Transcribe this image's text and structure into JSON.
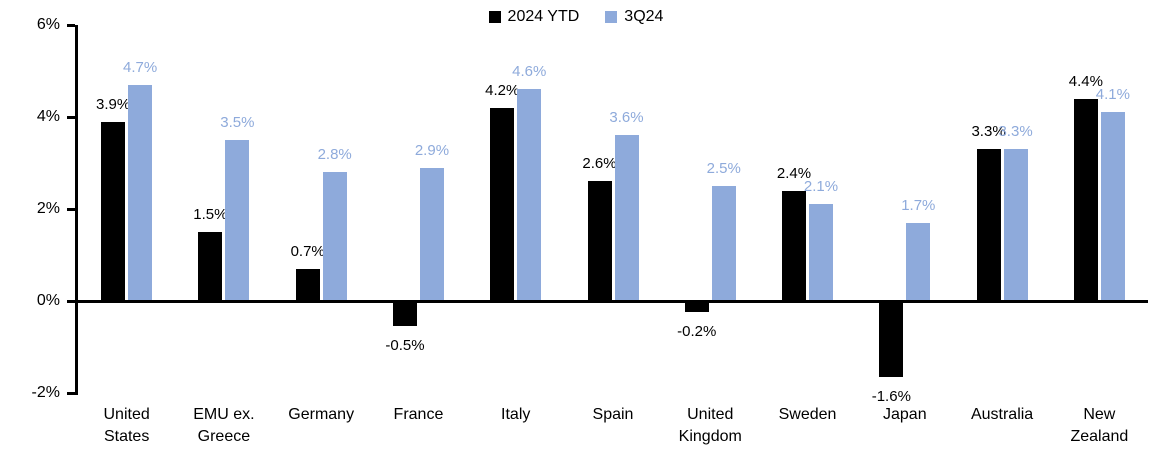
{
  "chart_data": {
    "type": "bar",
    "title": "",
    "categories": [
      "United\nStates",
      "EMU ex.\nGreece",
      "Germany",
      "France",
      "Italy",
      "Spain",
      "United\nKingdom",
      "Sweden",
      "Japan",
      "Australia",
      "New\nZealand"
    ],
    "series": [
      {
        "name": "2024 YTD",
        "color": "#000000",
        "values": [
          3.9,
          1.5,
          0.7,
          -0.5,
          4.2,
          2.6,
          -0.2,
          2.4,
          -1.6,
          3.3,
          4.4
        ],
        "labels": [
          "3.9%",
          "1.5%",
          "0.7%",
          "-0.5%",
          "4.2%",
          "2.6%",
          "-0.2%",
          "2.4%",
          "-1.6%",
          "3.3%",
          "4.4%"
        ]
      },
      {
        "name": "3Q24",
        "color": "#8EAADB",
        "values": [
          4.7,
          3.5,
          2.8,
          2.9,
          4.6,
          3.6,
          2.5,
          2.1,
          1.7,
          3.3,
          4.1
        ],
        "labels": [
          "4.7%",
          "3.5%",
          "2.8%",
          "2.9%",
          "4.6%",
          "3.6%",
          "2.5%",
          "2.1%",
          "1.7%",
          "3.3%",
          "4.1%"
        ]
      }
    ],
    "ylim": [
      -2,
      6
    ],
    "yticks": [
      -2,
      0,
      2,
      4,
      6
    ],
    "ytick_labels": [
      "-2%",
      "0%",
      "2%",
      "4%",
      "6%"
    ],
    "xlabel": "",
    "ylabel": "",
    "grid": false,
    "legend_position": "top-center"
  }
}
